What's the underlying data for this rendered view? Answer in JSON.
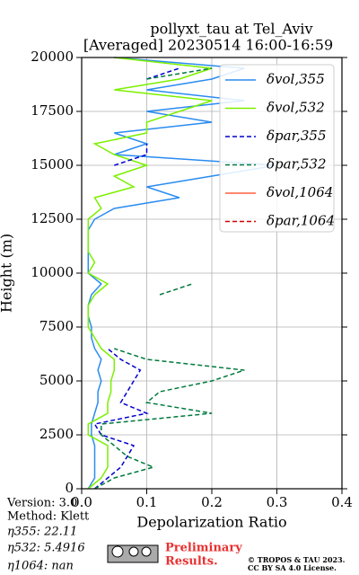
{
  "chart_data": {
    "type": "line",
    "title": "pollyxt_tau at Tel_Aviv",
    "subtitle": "[Averaged] 20230514 16:00-16:59",
    "xlabel": "Depolarization Ratio",
    "ylabel": "Height (m)",
    "xlim": [
      0,
      0.4
    ],
    "ylim": [
      0,
      20000
    ],
    "xticks": [
      {
        "value": 0,
        "label": "0.0"
      },
      0.1,
      0.2,
      0.3,
      0.4
    ],
    "yticks": [
      0,
      2500,
      5000,
      7500,
      10000,
      12500,
      15000,
      17500,
      20000
    ],
    "grid": true,
    "legend": "upper right",
    "y": [
      0,
      500,
      1000,
      1500,
      2000,
      2500,
      3000,
      3500,
      4000,
      4500,
      5000,
      5500,
      6000,
      6500,
      7000,
      7500,
      8000,
      8500,
      9000,
      9500,
      10000,
      10500,
      11000,
      11500,
      12000,
      12500,
      13000,
      13500,
      14000,
      14500,
      15000,
      15500,
      16000,
      16500,
      17000,
      17500,
      18000,
      18500,
      19000,
      19500,
      20000
    ],
    "series": [
      {
        "name": "δvol,355",
        "color": "#2a8cf0",
        "dash": false,
        "values": [
          0.01,
          0.02,
          0.02,
          0.02,
          0.02,
          0.015,
          0.015,
          0.02,
          0.025,
          0.025,
          0.03,
          0.025,
          0.03,
          0.02,
          0.015,
          0.015,
          0.01,
          0.01,
          0.015,
          0.03,
          0.01,
          0.01,
          0.01,
          0.01,
          0.01,
          0.02,
          0.05,
          0.15,
          0.1,
          0.2,
          0.3,
          0.05,
          0.1,
          0.05,
          0.2,
          0.1,
          0.25,
          0.1,
          0.2,
          0.25,
          0.05
        ]
      },
      {
        "name": "δvol,532",
        "color": "#7cf000",
        "dash": false,
        "values": [
          0.01,
          0.03,
          0.04,
          0.04,
          0.04,
          0.01,
          0.01,
          0.04,
          0.04,
          0.045,
          0.045,
          0.05,
          0.05,
          0.03,
          0.02,
          0.01,
          0.01,
          0.01,
          0.02,
          0.04,
          0.01,
          0.02,
          0.01,
          0.01,
          0.01,
          0.01,
          0.03,
          0.02,
          0.08,
          0.05,
          0.1,
          0.05,
          0.02,
          0.1,
          0.1,
          0.15,
          0.2,
          0.05,
          0.15,
          0.2,
          0.05
        ]
      },
      {
        "name": "δpar,355",
        "color": "#0000d0",
        "dash": true,
        "values": [
          0.02,
          0.04,
          0.06,
          0.07,
          0.08,
          0.03,
          0.02,
          0.1,
          0.06,
          0.07,
          0.08,
          0.09,
          0.06,
          0.04,
          null,
          null,
          null,
          null,
          null,
          null,
          null,
          null,
          null,
          null,
          null,
          null,
          null,
          null,
          null,
          null,
          0.05,
          0.1,
          0.1,
          null,
          null,
          null,
          null,
          null,
          0.1,
          0.15,
          null
        ]
      },
      {
        "name": "δpar,532",
        "color": "#007a3d",
        "dash": true,
        "values": [
          0.02,
          0.05,
          0.11,
          0.07,
          0.05,
          0.03,
          0.03,
          0.2,
          0.1,
          0.12,
          0.2,
          0.25,
          0.1,
          0.05,
          null,
          null,
          null,
          null,
          0.12,
          0.17,
          null,
          null,
          null,
          null,
          null,
          null,
          null,
          null,
          null,
          null,
          null,
          null,
          null,
          null,
          null,
          null,
          null,
          null,
          0.1,
          0.2,
          null
        ]
      },
      {
        "name": "δvol,1064",
        "color": "#ff6040",
        "dash": false,
        "values": [
          null,
          null,
          null,
          null,
          null,
          null,
          null,
          null,
          null,
          null,
          null,
          null,
          null,
          null,
          null,
          null,
          null,
          null,
          null,
          null,
          null,
          null,
          null,
          null,
          null,
          null,
          null,
          null,
          null,
          null,
          null,
          null,
          null,
          null,
          null,
          null,
          null,
          null,
          null,
          null,
          null
        ]
      },
      {
        "name": "δpar,1064",
        "color": "#d00000",
        "dash": true,
        "values": [
          null,
          null,
          null,
          null,
          null,
          null,
          null,
          null,
          null,
          null,
          null,
          null,
          null,
          null,
          null,
          null,
          null,
          null,
          null,
          null,
          null,
          null,
          null,
          null,
          null,
          null,
          null,
          null,
          null,
          null,
          null,
          null,
          null,
          null,
          null,
          null,
          null,
          null,
          null,
          null,
          null
        ]
      }
    ]
  },
  "footer": {
    "version": "Version: 3.0",
    "method": "Method: Klett",
    "eta355": "η355:  22.11",
    "eta532": "η532: 5.4916",
    "eta1064": "η1064:    nan",
    "preliminary": [
      "Preliminary",
      "Results."
    ],
    "copyright": [
      "© TROPOS & TAU 2023.",
      "CC BY SA 4.0 License."
    ]
  }
}
